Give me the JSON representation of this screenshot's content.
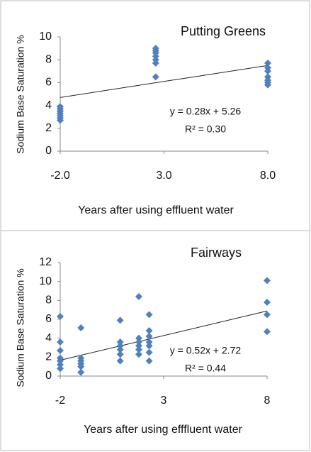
{
  "chart_data": [
    {
      "type": "scatter",
      "title": "Putting Greens",
      "x_label": "Years after using effluent water",
      "y_label": "Sodium Base Saturation %",
      "annotations": [
        "y = 0.28x + 5.26",
        "R² = 0.30"
      ],
      "trendline": {
        "slope": 0.28,
        "intercept": 5.26
      },
      "color": "#4f81bd",
      "x": [
        -2,
        -2,
        -2,
        -2,
        -2,
        -2,
        -2,
        2.6,
        2.6,
        2.6,
        2.6,
        2.6,
        2.6,
        2.6,
        8,
        8,
        8,
        8,
        8,
        8,
        8
      ],
      "values": [
        2.7,
        2.9,
        3.1,
        3.3,
        3.5,
        3.7,
        3.9,
        6.5,
        7.7,
        8.0,
        8.3,
        8.6,
        8.8,
        9.0,
        5.8,
        6.0,
        6.2,
        6.5,
        7.0,
        7.3,
        7.7
      ],
      "xlim": [
        -2,
        8
      ],
      "ylim": [
        0,
        10
      ],
      "xticks": [
        {
          "value": -2,
          "label": "-2.0"
        },
        {
          "value": 3,
          "label": "3.0"
        },
        {
          "value": 8,
          "label": "8.0"
        }
      ],
      "yticks": [
        0,
        2,
        4,
        6,
        8,
        10
      ]
    },
    {
      "type": "scatter",
      "title": "Fairways",
      "x_label": "Years after using efffluent water",
      "y_label": "Sodium Base Saturation %",
      "annotations": [
        "y = 0.52x + 2.72",
        "R² = 0.44"
      ],
      "trendline": {
        "slope": 0.52,
        "intercept": 2.72
      },
      "color": "#4f81bd",
      "x": [
        -2,
        -2,
        -2,
        -2,
        -2,
        -2,
        -2,
        -1,
        -1,
        -1,
        -1,
        -1,
        -1,
        0.9,
        0.9,
        0.9,
        0.9,
        0.9,
        0.9,
        1.8,
        1.8,
        1.8,
        1.8,
        1.8,
        1.8,
        2.3,
        2.3,
        2.3,
        2.3,
        2.3,
        2.3,
        2.3,
        8,
        8,
        8,
        8
      ],
      "values": [
        0.8,
        1.2,
        1.6,
        1.9,
        2.7,
        3.6,
        6.3,
        0.4,
        1.0,
        1.3,
        1.6,
        1.9,
        5.1,
        1.6,
        2.3,
        2.8,
        3.2,
        3.6,
        5.9,
        2.3,
        2.8,
        3.2,
        3.6,
        4.0,
        8.4,
        1.6,
        2.5,
        3.2,
        3.6,
        4.2,
        4.8,
        6.5,
        4.7,
        6.5,
        7.8,
        10.1
      ],
      "xlim": [
        -2,
        8
      ],
      "ylim": [
        0,
        12
      ],
      "xticks": [
        -2,
        3,
        8
      ],
      "yticks": [
        0,
        2,
        4,
        6,
        8,
        10,
        12
      ]
    }
  ]
}
